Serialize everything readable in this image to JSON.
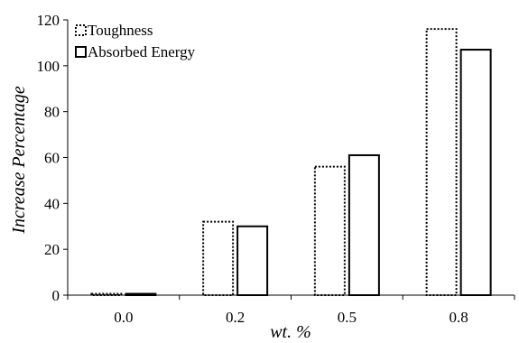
{
  "chart_data": {
    "type": "bar",
    "xlabel": "wt. %",
    "ylabel": "Increase Percentage",
    "categories": [
      "0.0",
      "0.2",
      "0.5",
      "0.8"
    ],
    "ylim": [
      0,
      120
    ],
    "yticks": [
      "0",
      "20",
      "40",
      "60",
      "80",
      "100",
      "120"
    ],
    "grid": false,
    "legend": "top-left",
    "series": [
      {
        "name": "Toughness",
        "values": [
          0,
          32,
          56,
          116
        ],
        "style": "dotted-outline"
      },
      {
        "name": "Absorbed Energy",
        "values": [
          0,
          30,
          61,
          107
        ],
        "style": "solid-outline"
      }
    ]
  }
}
